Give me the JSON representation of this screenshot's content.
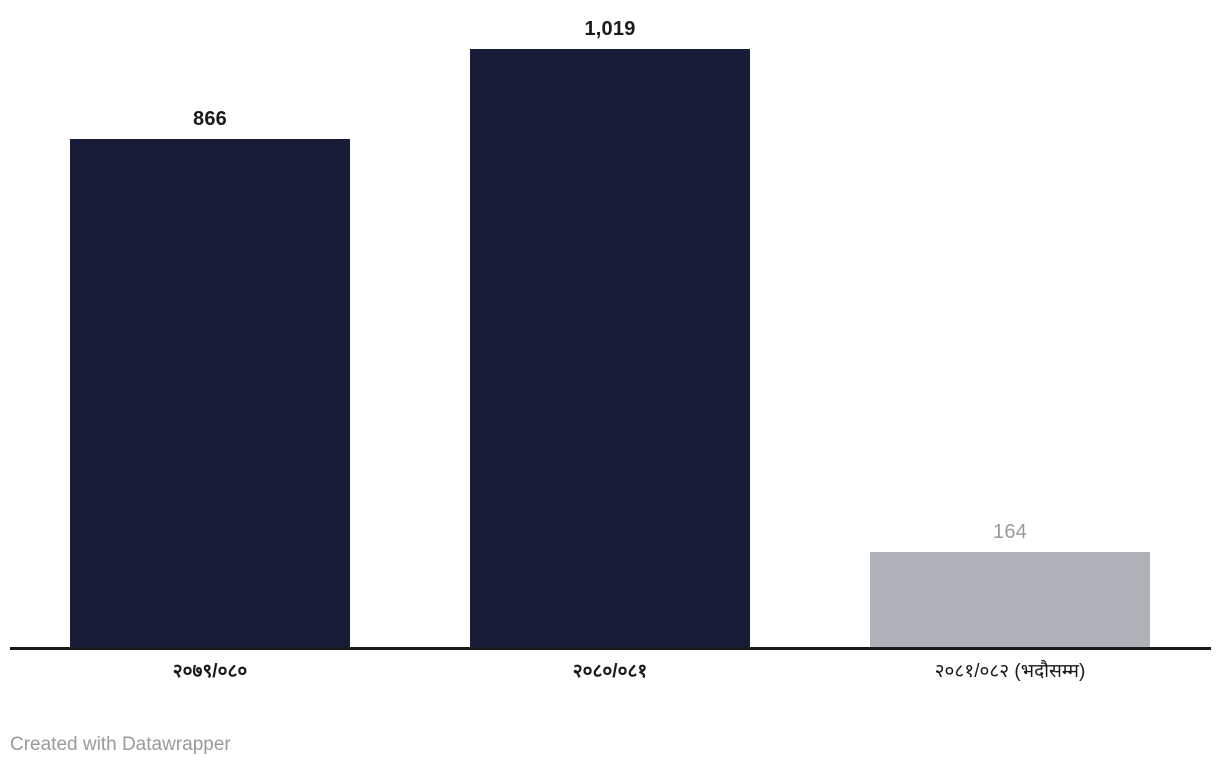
{
  "chart_data": {
    "type": "bar",
    "categories": [
      "२०७९/०८०",
      "२०८०/०८१",
      "२०८१/०८२ (भदौसम्म)"
    ],
    "values": [
      866,
      1019,
      164
    ],
    "value_labels": [
      "866",
      "1,019",
      "164"
    ],
    "bar_colors": [
      "#171d38",
      "#171d38",
      "#aeb0ba"
    ],
    "value_label_colors": [
      "#1a1a1a",
      "#1a1a1a",
      "#9a9a9a"
    ],
    "value_label_bold": [
      true,
      true,
      false
    ],
    "category_bold": [
      true,
      true,
      false
    ],
    "title": "",
    "xlabel": "",
    "ylabel": "",
    "ylim": [
      0,
      1019
    ],
    "grid": false,
    "legend": false,
    "axis_line_color": "#1a1a1a",
    "background_color": "#ffffff"
  },
  "footer": {
    "credit": "Created with Datawrapper"
  }
}
